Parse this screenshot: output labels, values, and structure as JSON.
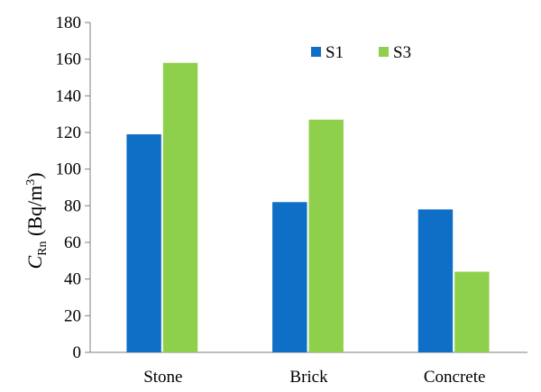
{
  "chart_data": {
    "type": "bar",
    "categories": [
      "Stone",
      "Brick",
      "Concrete"
    ],
    "series": [
      {
        "name": "S1",
        "values": [
          119,
          82,
          78
        ],
        "color": "#0f6fc6"
      },
      {
        "name": "S3",
        "values": [
          158,
          127,
          44
        ],
        "color": "#8ed04c"
      }
    ],
    "ylabel": {
      "main": "C",
      "sub": "Rn",
      "unit_open": " (Bq/m",
      "sup": "3",
      "unit_close": ")"
    },
    "ylim": [
      0,
      180
    ],
    "yticks": [
      "0",
      "20",
      "40",
      "60",
      "80",
      "100",
      "120",
      "140",
      "160",
      "180"
    ],
    "legend_position": "top-center",
    "grid": false
  }
}
